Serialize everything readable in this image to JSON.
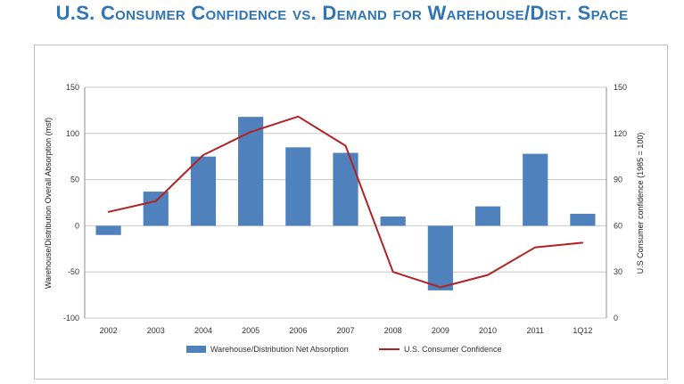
{
  "page": {
    "title": "U.S. Consumer Confidence vs. Demand for Warehouse/Dist. Space"
  },
  "chart_data": {
    "type": "bar",
    "categories": [
      "2002",
      "2003",
      "2004",
      "2005",
      "2006",
      "2007",
      "2008",
      "2009",
      "2010",
      "2011",
      "1Q12"
    ],
    "series": [
      {
        "name": "Warehouse/Distribution Net Absorption",
        "kind": "bar",
        "axis": "left",
        "color": "#4f81bd",
        "values": [
          -10,
          37,
          75,
          118,
          85,
          79,
          10,
          -70,
          21,
          78,
          13
        ]
      },
      {
        "name": "U.S. Consumer Confidence",
        "kind": "line",
        "axis": "right",
        "color": "#b22222",
        "values": [
          69,
          76,
          106,
          121,
          131,
          112,
          30,
          20,
          28,
          46,
          49
        ]
      }
    ],
    "ylabel": "Warehouse/Distribution Overall Absorption (msf)",
    "y2label": "U.S Consumer confidence (1985 = 100)",
    "ylim": [
      -100,
      150
    ],
    "y2lim": [
      0,
      150
    ],
    "yticks": [
      -100,
      -50,
      0,
      50,
      100,
      150
    ],
    "y2ticks": [
      0,
      30,
      60,
      90,
      120,
      150
    ],
    "grid": true,
    "legend": "bottom"
  }
}
